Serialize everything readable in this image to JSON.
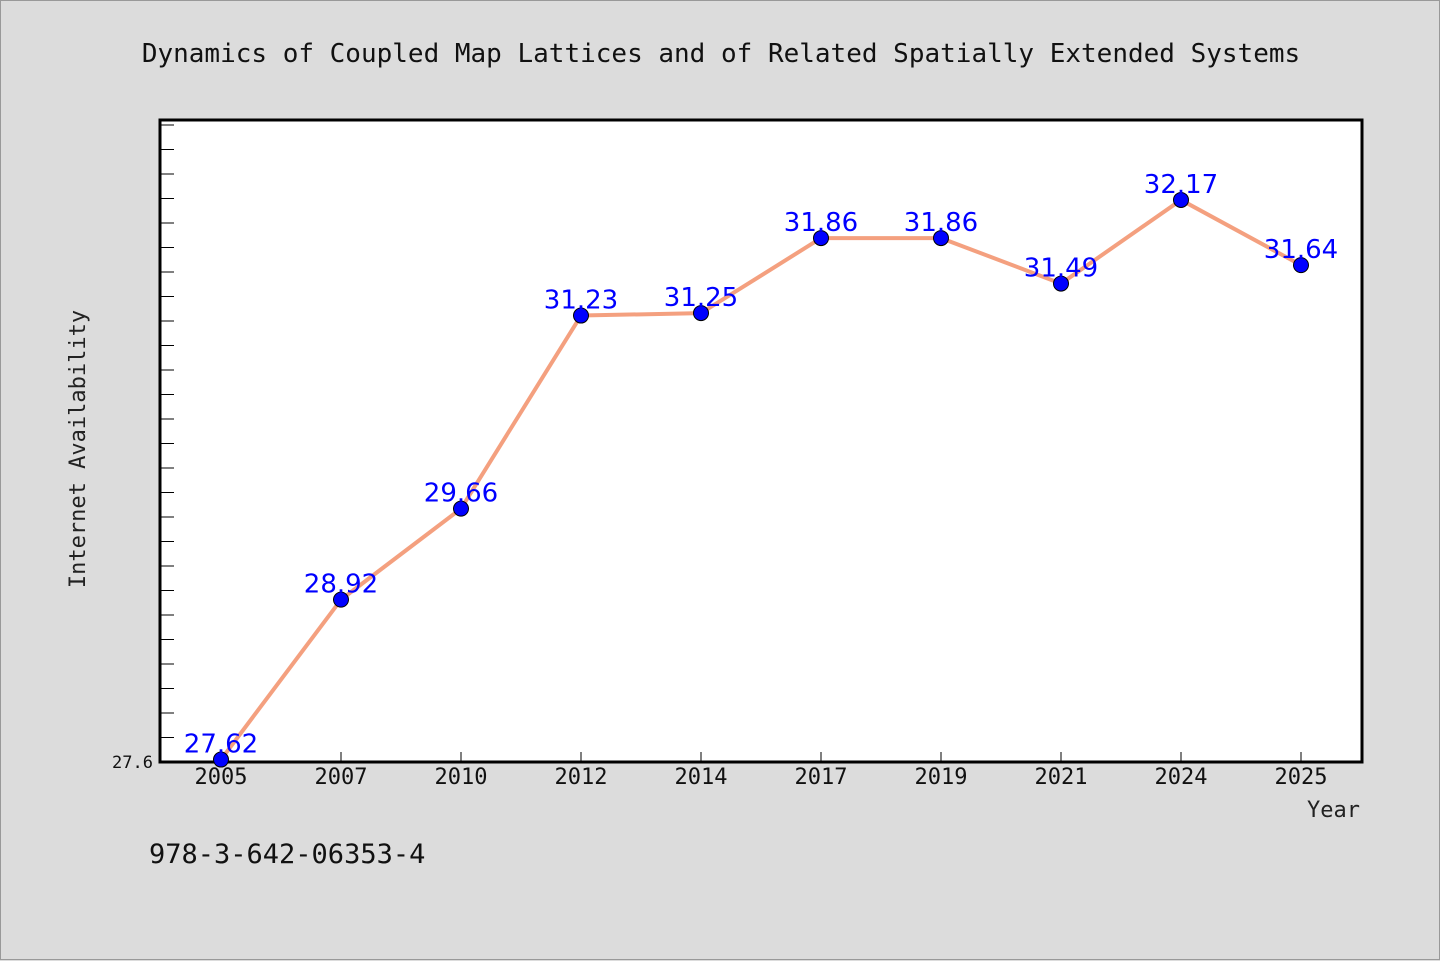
{
  "footer_text": "978-3-642-06353-4",
  "colors": {
    "background": "#dcdcdc",
    "plot_background": "#ffffff",
    "line": "#f4a07f",
    "marker": "#0000ff",
    "data_label": "#0000ff"
  },
  "chart_data": {
    "type": "line",
    "title": "Dynamics of Coupled Map Lattices and of Related Spatially Extended Systems",
    "xlabel": "Year",
    "ylabel": "Internet Availability",
    "categories": [
      "2005",
      "2007",
      "2010",
      "2012",
      "2014",
      "2017",
      "2019",
      "2021",
      "2024",
      "2025"
    ],
    "values": [
      27.62,
      28.92,
      29.66,
      31.23,
      31.25,
      31.86,
      31.86,
      31.49,
      32.17,
      31.64
    ],
    "data_labels": [
      "27.62",
      "28.92",
      "29.66",
      "31.23",
      "31.25",
      "31.86",
      "31.86",
      "31.49",
      "32.17",
      "31.64"
    ],
    "ylim": [
      27.6,
      32.82
    ],
    "y_tick_labels": [
      "27.6"
    ],
    "grid": false,
    "legend": "none",
    "marker": "circle"
  }
}
